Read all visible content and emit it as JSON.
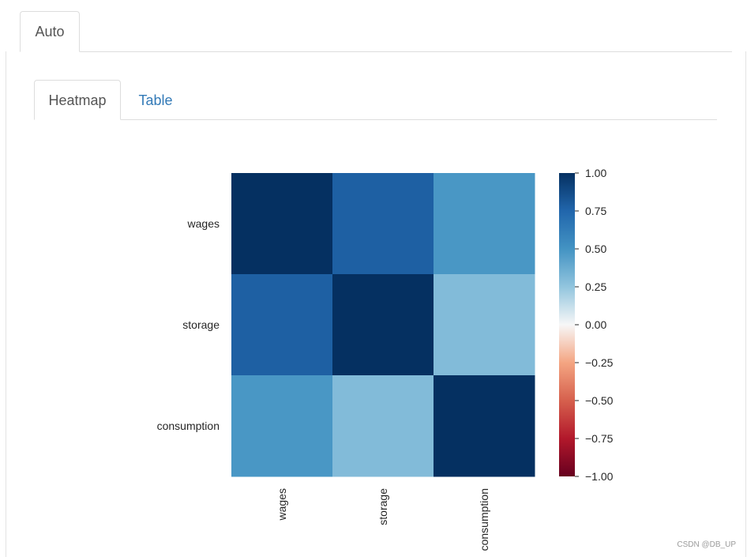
{
  "tabs": {
    "outer": [
      {
        "label": "Auto",
        "active": true
      }
    ],
    "inner": [
      {
        "label": "Heatmap",
        "active": true
      },
      {
        "label": "Table",
        "active": false
      }
    ]
  },
  "colors": {
    "link": "#337ab7",
    "colormap": "RdBu_r"
  },
  "chart_data": {
    "type": "heatmap",
    "rows": [
      "wages",
      "storage",
      "consumption"
    ],
    "columns": [
      "wages",
      "storage",
      "consumption"
    ],
    "values": [
      [
        1.0,
        0.78,
        0.48
      ],
      [
        0.78,
        1.0,
        0.3
      ],
      [
        0.48,
        0.3,
        1.0
      ]
    ],
    "colorbar": {
      "min": -1.0,
      "max": 1.0,
      "ticks": [
        "1.00",
        "0.75",
        "0.50",
        "0.25",
        "0.00",
        "−0.25",
        "−0.50",
        "−0.75",
        "−1.00"
      ]
    },
    "title": "",
    "xlabel": "",
    "ylabel": ""
  },
  "watermark": "CSDN @DB_UP"
}
